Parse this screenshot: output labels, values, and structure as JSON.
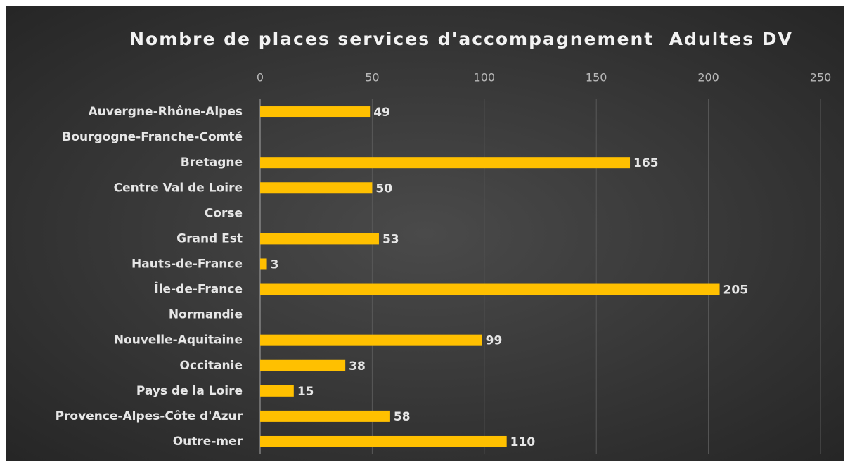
{
  "chart_data": {
    "type": "bar",
    "orientation": "horizontal",
    "title": "Nombre de places services d'accompagnement  Adultes DV",
    "categories": [
      "Auvergne-Rhône-Alpes",
      "Bourgogne-Franche-Comté",
      "Bretagne",
      "Centre Val de Loire",
      "Corse",
      "Grand Est",
      "Hauts-de-France",
      "Île-de-France",
      "Normandie",
      "Nouvelle-Aquitaine",
      "Occitanie",
      "Pays de la Loire",
      "Provence-Alpes-Côte d'Azur",
      "Outre-mer"
    ],
    "values": [
      49,
      null,
      165,
      50,
      null,
      53,
      3,
      205,
      null,
      99,
      38,
      15,
      58,
      110
    ],
    "color": "#ffc000",
    "xlim": [
      0,
      250
    ],
    "xticks": [
      0,
      50,
      100,
      150,
      200,
      250
    ],
    "grid": true
  }
}
